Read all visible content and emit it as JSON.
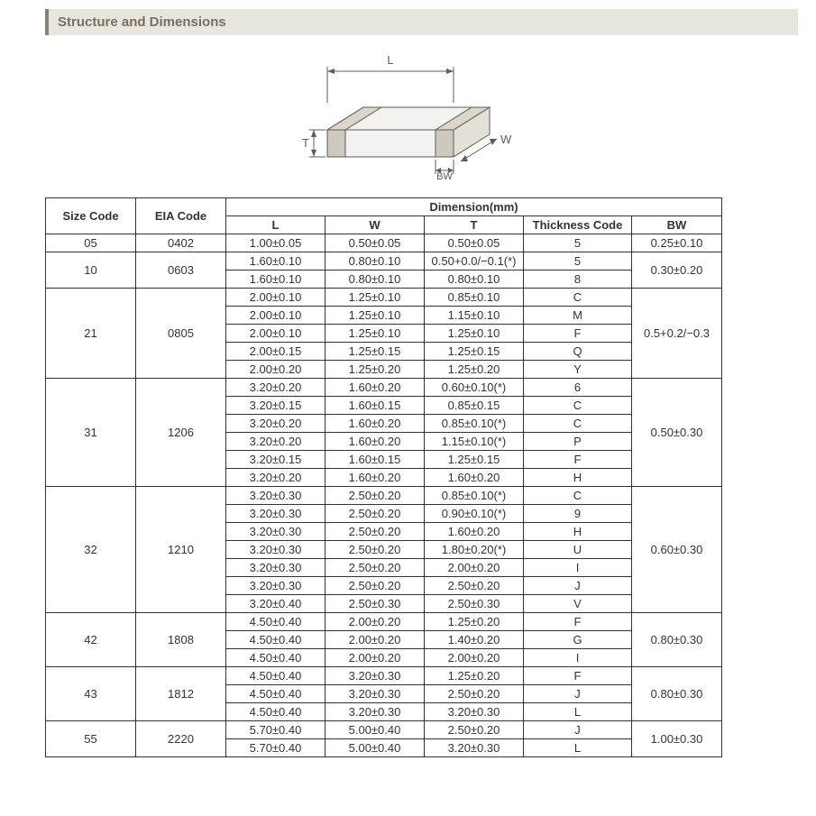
{
  "title": "Structure and Dimensions",
  "diagram": {
    "labels": {
      "L": "L",
      "T": "T",
      "W": "W",
      "BW": "BW"
    },
    "stroke": "#5c5c5c",
    "fill_light": "#f4f2ee",
    "fill_dark": "#cfc9bd"
  },
  "table": {
    "headers": {
      "size_code": "Size Code",
      "eia_code": "EIA Code",
      "dimension": "Dimension(mm)",
      "L": "L",
      "W": "W",
      "T": "T",
      "thickness_code": "Thickness  Code",
      "BW": "BW"
    },
    "groups": [
      {
        "size_code": "05",
        "eia_code": "0402",
        "bw": "0.25±0.10",
        "rows": [
          {
            "L": "1.00±0.05",
            "W": "0.50±0.05",
            "T": "0.50±0.05",
            "TC": "5"
          }
        ]
      },
      {
        "size_code": "10",
        "eia_code": "0603",
        "bw": "0.30±0.20",
        "rows": [
          {
            "L": "1.60±0.10",
            "W": "0.80±0.10",
            "T": "0.50+0.0/−0.1(*)",
            "TC": "5"
          },
          {
            "L": "1.60±0.10",
            "W": "0.80±0.10",
            "T": "0.80±0.10",
            "TC": "8"
          }
        ]
      },
      {
        "size_code": "21",
        "eia_code": "0805",
        "bw": "0.5+0.2/−0.3",
        "rows": [
          {
            "L": "2.00±0.10",
            "W": "1.25±0.10",
            "T": "0.85±0.10",
            "TC": "C"
          },
          {
            "L": "2.00±0.10",
            "W": "1.25±0.10",
            "T": "1.15±0.10",
            "TC": "M"
          },
          {
            "L": "2.00±0.10",
            "W": "1.25±0.10",
            "T": "1.25±0.10",
            "TC": "F"
          },
          {
            "L": "2.00±0.15",
            "W": "1.25±0.15",
            "T": "1.25±0.15",
            "TC": "Q"
          },
          {
            "L": "2.00±0.20",
            "W": "1.25±0.20",
            "T": "1.25±0.20",
            "TC": "Y"
          }
        ]
      },
      {
        "size_code": "31",
        "eia_code": "1206",
        "bw": "0.50±0.30",
        "rows": [
          {
            "L": "3.20±0.20",
            "W": "1.60±0.20",
            "T": "0.60±0.10(*)",
            "TC": "6"
          },
          {
            "L": "3.20±0.15",
            "W": "1.60±0.15",
            "T": "0.85±0.15",
            "TC": "C"
          },
          {
            "L": "3.20±0.20",
            "W": "1.60±0.20",
            "T": "0.85±0.10(*)",
            "TC": "C"
          },
          {
            "L": "3.20±0.20",
            "W": "1.60±0.20",
            "T": "1.15±0.10(*)",
            "TC": "P"
          },
          {
            "L": "3.20±0.15",
            "W": "1.60±0.15",
            "T": "1.25±0.15",
            "TC": "F"
          },
          {
            "L": "3.20±0.20",
            "W": "1.60±0.20",
            "T": "1.60±0.20",
            "TC": "H"
          }
        ]
      },
      {
        "size_code": "32",
        "eia_code": "1210",
        "bw": "0.60±0.30",
        "rows": [
          {
            "L": "3.20±0.30",
            "W": "2.50±0.20",
            "T": "0.85±0.10(*)",
            "TC": "C"
          },
          {
            "L": "3.20±0.30",
            "W": "2.50±0.20",
            "T": "0.90±0.10(*)",
            "TC": "9"
          },
          {
            "L": "3.20±0.30",
            "W": "2.50±0.20",
            "T": "1.60±0.20",
            "TC": "H"
          },
          {
            "L": "3.20±0.30",
            "W": "2.50±0.20",
            "T": "1.80±0.20(*)",
            "TC": "U"
          },
          {
            "L": "3.20±0.30",
            "W": "2.50±0.20",
            "T": "2.00±0.20",
            "TC": "I"
          },
          {
            "L": "3.20±0.30",
            "W": "2.50±0.20",
            "T": "2.50±0.20",
            "TC": "J"
          },
          {
            "L": "3.20±0.40",
            "W": "2.50±0.30",
            "T": "2.50±0.30",
            "TC": "V"
          }
        ]
      },
      {
        "size_code": "42",
        "eia_code": "1808",
        "bw": "0.80±0.30",
        "rows": [
          {
            "L": "4.50±0.40",
            "W": "2.00±0.20",
            "T": "1.25±0.20",
            "TC": "F"
          },
          {
            "L": "4.50±0.40",
            "W": "2.00±0.20",
            "T": "1.40±0.20",
            "TC": "G"
          },
          {
            "L": "4.50±0.40",
            "W": "2.00±0.20",
            "T": "2.00±0.20",
            "TC": "I"
          }
        ]
      },
      {
        "size_code": "43",
        "eia_code": "1812",
        "bw": "0.80±0.30",
        "rows": [
          {
            "L": "4.50±0.40",
            "W": "3.20±0.30",
            "T": "1.25±0.20",
            "TC": "F"
          },
          {
            "L": "4.50±0.40",
            "W": "3.20±0.30",
            "T": "2.50±0.20",
            "TC": "J"
          },
          {
            "L": "4.50±0.40",
            "W": "3.20±0.30",
            "T": "3.20±0.30",
            "TC": "L"
          }
        ]
      },
      {
        "size_code": "55",
        "eia_code": "2220",
        "bw": "1.00±0.30",
        "rows": [
          {
            "L": "5.70±0.40",
            "W": "5.00±0.40",
            "T": "2.50±0.20",
            "TC": "J"
          },
          {
            "L": "5.70±0.40",
            "W": "5.00±0.40",
            "T": "3.20±0.30",
            "TC": "L"
          }
        ]
      }
    ]
  }
}
